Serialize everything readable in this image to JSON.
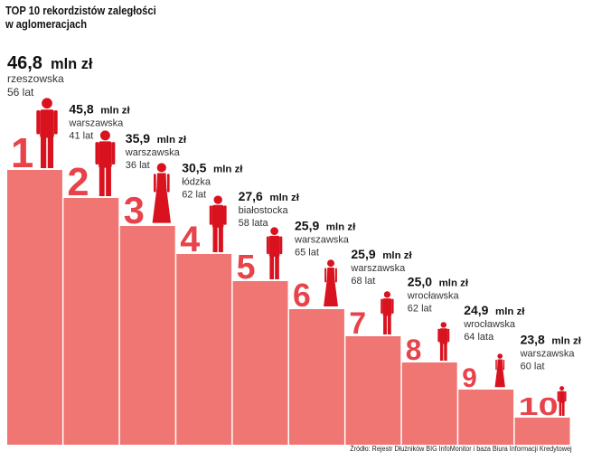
{
  "title_lines": [
    "TOP 10 rekordzistów zaległości",
    "w aglomeracjach"
  ],
  "source": "Źródło: Rejestr Dłużników BIG InfoMonitor i baza Biura Informacji Kredytowej",
  "colors": {
    "bar": "#ef7672",
    "bar_divider": "#ffffff",
    "figure": "#d9121f",
    "rank": "#e8424a"
  },
  "chart_data": {
    "type": "bar",
    "title": "TOP 10 rekordzistów zaległości w aglomeracjach",
    "unit": "mln zł",
    "xlabel": "",
    "ylabel": "",
    "ylim": [
      20,
      47
    ],
    "categories": [
      "1",
      "2",
      "3",
      "4",
      "5",
      "6",
      "7",
      "8",
      "9",
      "10"
    ],
    "values": [
      46.8,
      45.8,
      35.9,
      30.5,
      27.6,
      25.9,
      25.9,
      25.0,
      24.9,
      23.8
    ],
    "items": [
      {
        "rank": "1",
        "amount": "46,8",
        "unit": "mln zł",
        "region": "rzeszowska",
        "age": "56 lat",
        "gender": "male"
      },
      {
        "rank": "2",
        "amount": "45,8",
        "unit": "mln zł",
        "region": "warszawska",
        "age": "41 lat",
        "gender": "male"
      },
      {
        "rank": "3",
        "amount": "35,9",
        "unit": "mln zł",
        "region": "warszawska",
        "age": "36 lat",
        "gender": "female"
      },
      {
        "rank": "4",
        "amount": "30,5",
        "unit": "mln zł",
        "region": "łódzka",
        "age": "62 lat",
        "gender": "male"
      },
      {
        "rank": "5",
        "amount": "27,6",
        "unit": "mln zł",
        "region": "białostocka",
        "age": "58 lata",
        "gender": "male"
      },
      {
        "rank": "6",
        "amount": "25,9",
        "unit": "mln zł",
        "region": "warszawska",
        "age": "65 lat",
        "gender": "female"
      },
      {
        "rank": "7",
        "amount": "25,9",
        "unit": "mln zł",
        "region": "warszawska",
        "age": "68 lat",
        "gender": "male"
      },
      {
        "rank": "8",
        "amount": "25,0",
        "unit": "mln zł",
        "region": "wrocławska",
        "age": "62 lat",
        "gender": "male"
      },
      {
        "rank": "9",
        "amount": "24,9",
        "unit": "mln zł",
        "region": "wrocławska",
        "age": "64 lata",
        "gender": "female"
      },
      {
        "rank": "10",
        "amount": "23,8",
        "unit": "mln zł",
        "region": "warszawska",
        "age": "60 lat",
        "gender": "male"
      }
    ]
  }
}
